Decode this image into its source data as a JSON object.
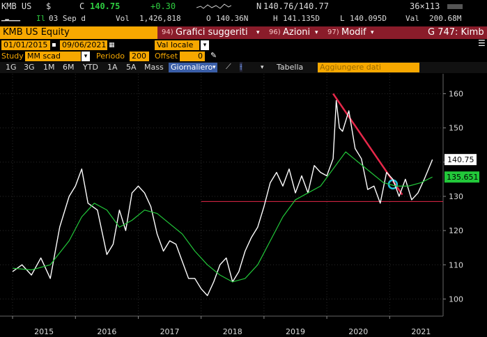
{
  "quote": {
    "ticker": "KMB US",
    "currency": "$",
    "c_label": "C",
    "last_price": "140.75",
    "change": "+0.30",
    "n_label": "N",
    "bid_ask": "140.76/140.77",
    "size": "36×113"
  },
  "sub": {
    "il_label": "Il",
    "date": "03 Sep d",
    "vol_label": "Vol",
    "volume": "1,426,818",
    "open_label": "O",
    "open": "140.36N",
    "high_label": "H",
    "high": "141.135D",
    "low_label": "L",
    "low": "140.095D",
    "val_label": "Val",
    "value": "200.68M"
  },
  "titlebar": {
    "security": "KMB US Equity",
    "menu1_num": "94)",
    "menu1": "Grafici suggeriti",
    "menu2_num": "96)",
    "menu2": "Azioni",
    "menu3_num": "97)",
    "menu3": "Modif",
    "function": "G 747: Kimb"
  },
  "controls": {
    "start_date": "01/01/2015",
    "end_date": "09/06/2021",
    "currency_mode": "Val locale",
    "study_label": "Study",
    "study_value": "MM scad",
    "period_label": "Periodo",
    "period_value": "200",
    "offset_label": "Offset",
    "offset_value": "0"
  },
  "toolbar": {
    "ranges": [
      "1G",
      "3G",
      "1M",
      "6M",
      "YTD",
      "1A",
      "5A",
      "Mass"
    ],
    "frequency": "Giornaliero",
    "table": "Tabella",
    "add_data": "Aggiungere dati"
  },
  "chart_data": {
    "type": "line",
    "x_ticks": [
      "2015",
      "2016",
      "2017",
      "2018",
      "2019",
      "2020",
      "2021"
    ],
    "y_ticks": [
      100,
      110,
      120,
      130,
      140,
      150,
      160
    ],
    "ylim": [
      95,
      165
    ],
    "last_price_label": "140.75",
    "ma_label": "135.651",
    "series": [
      {
        "color": "#ffffff",
        "x": [
          2015.0,
          2015.15,
          2015.3,
          2015.45,
          2015.6,
          2015.75,
          2015.9,
          2016.0,
          2016.1,
          2016.2,
          2016.35,
          2016.5,
          2016.6,
          2016.7,
          2016.8,
          2016.9,
          2017.0,
          2017.1,
          2017.2,
          2017.3,
          2017.4,
          2017.5,
          2017.6,
          2017.7,
          2017.8,
          2017.9,
          2018.0,
          2018.1,
          2018.2,
          2018.3,
          2018.4,
          2018.5,
          2018.6,
          2018.7,
          2018.8,
          2018.9,
          2019.0,
          2019.1,
          2019.2,
          2019.3,
          2019.4,
          2019.5,
          2019.6,
          2019.7,
          2019.8,
          2019.9,
          2020.0,
          2020.1,
          2020.15,
          2020.2,
          2020.25,
          2020.35,
          2020.45,
          2020.55,
          2020.65,
          2020.75,
          2020.85,
          2020.95,
          2021.05,
          2021.15,
          2021.25,
          2021.35,
          2021.45,
          2021.55,
          2021.68
        ],
        "y": [
          108,
          110,
          107,
          112,
          106,
          121,
          130,
          133,
          138,
          128,
          126,
          113,
          116,
          126,
          120,
          131,
          133,
          131,
          127,
          119,
          114,
          117,
          116,
          111,
          106,
          106,
          103,
          101,
          105,
          110,
          112,
          105,
          108,
          114,
          118,
          121,
          127,
          134,
          137,
          133,
          138,
          131,
          136,
          131,
          139,
          137,
          136,
          141,
          158,
          150,
          149,
          155,
          144,
          141,
          132,
          133,
          128,
          137,
          135,
          130,
          135,
          129,
          131,
          135,
          140.75
        ]
      },
      {
        "color": "#22c83a",
        "name": "MM scad",
        "x": [
          2015.0,
          2015.3,
          2015.6,
          2015.9,
          2016.1,
          2016.3,
          2016.5,
          2016.7,
          2016.9,
          2017.1,
          2017.3,
          2017.5,
          2017.7,
          2017.9,
          2018.1,
          2018.3,
          2018.5,
          2018.7,
          2018.9,
          2019.1,
          2019.3,
          2019.5,
          2019.7,
          2019.9,
          2020.1,
          2020.3,
          2020.5,
          2020.7,
          2020.9,
          2021.1,
          2021.3,
          2021.5,
          2021.68
        ],
        "y": [
          109,
          108.5,
          110,
          117,
          124,
          128,
          126,
          121,
          123,
          126,
          125,
          122,
          119,
          114,
          110,
          107,
          105,
          106,
          110,
          117,
          124,
          129,
          131,
          133,
          138,
          143,
          140,
          137,
          134,
          133,
          133,
          134,
          135.651
        ]
      }
    ],
    "annotations": {
      "support_level": 128.5,
      "trendline": {
        "x": [
          2020.1,
          2021.2
        ],
        "y": [
          160,
          130.5
        ]
      },
      "circle_marker": {
        "x": 2021.05,
        "y": 133.5
      }
    }
  },
  "colors": {
    "accent": "#f7a800",
    "title_red": "#8a1c2a",
    "price_green": "#2ecc40",
    "ma_green": "#22c83a",
    "trend_red": "#e8284a",
    "marker_cyan": "#2ac0d8"
  }
}
